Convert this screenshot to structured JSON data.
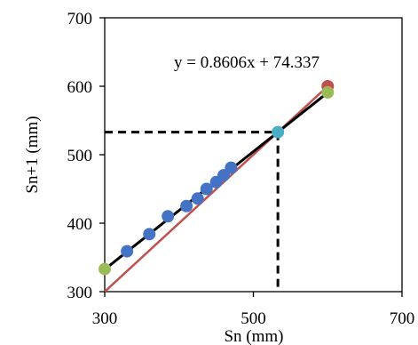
{
  "chart_data": {
    "type": "scatter",
    "title": "",
    "xlabel": "Sn (mm)",
    "ylabel": "Sn+1 (mm)",
    "xlim": [
      300,
      700
    ],
    "ylim": [
      300,
      700
    ],
    "x_ticks": [
      "300",
      "500",
      "700"
    ],
    "y_ticks": [
      "300",
      "400",
      "500",
      "600",
      "700"
    ],
    "grid": false,
    "annotation": "y = 0.8606x + 74.337",
    "series": [
      {
        "color": "#4472C4",
        "points": [
          {
            "x": 330,
            "y": 359
          },
          {
            "x": 360,
            "y": 384
          },
          {
            "x": 385,
            "y": 410
          },
          {
            "x": 410,
            "y": 425
          },
          {
            "x": 425,
            "y": 436
          },
          {
            "x": 437,
            "y": 450
          },
          {
            "x": 450,
            "y": 460
          },
          {
            "x": 460,
            "y": 470
          },
          {
            "x": 470,
            "y": 481
          }
        ]
      },
      {
        "color": "#4BACC6",
        "points": [
          {
            "x": 533,
            "y": 533
          }
        ]
      },
      {
        "color": "#C0504D",
        "points": [
          {
            "x": 600,
            "y": 600
          }
        ]
      },
      {
        "color": "#9BBB59",
        "points": [
          {
            "x": 300,
            "y": 333
          },
          {
            "x": 600,
            "y": 591
          }
        ]
      }
    ],
    "trendline": {
      "slope": 0.8606,
      "intercept": 74.337,
      "x_range": [
        300,
        600
      ],
      "color": "#000000"
    },
    "identity_line": {
      "x_range": [
        300,
        600
      ],
      "color": "#C0504D"
    },
    "fixed_point": {
      "x": 533,
      "y": 533
    }
  }
}
